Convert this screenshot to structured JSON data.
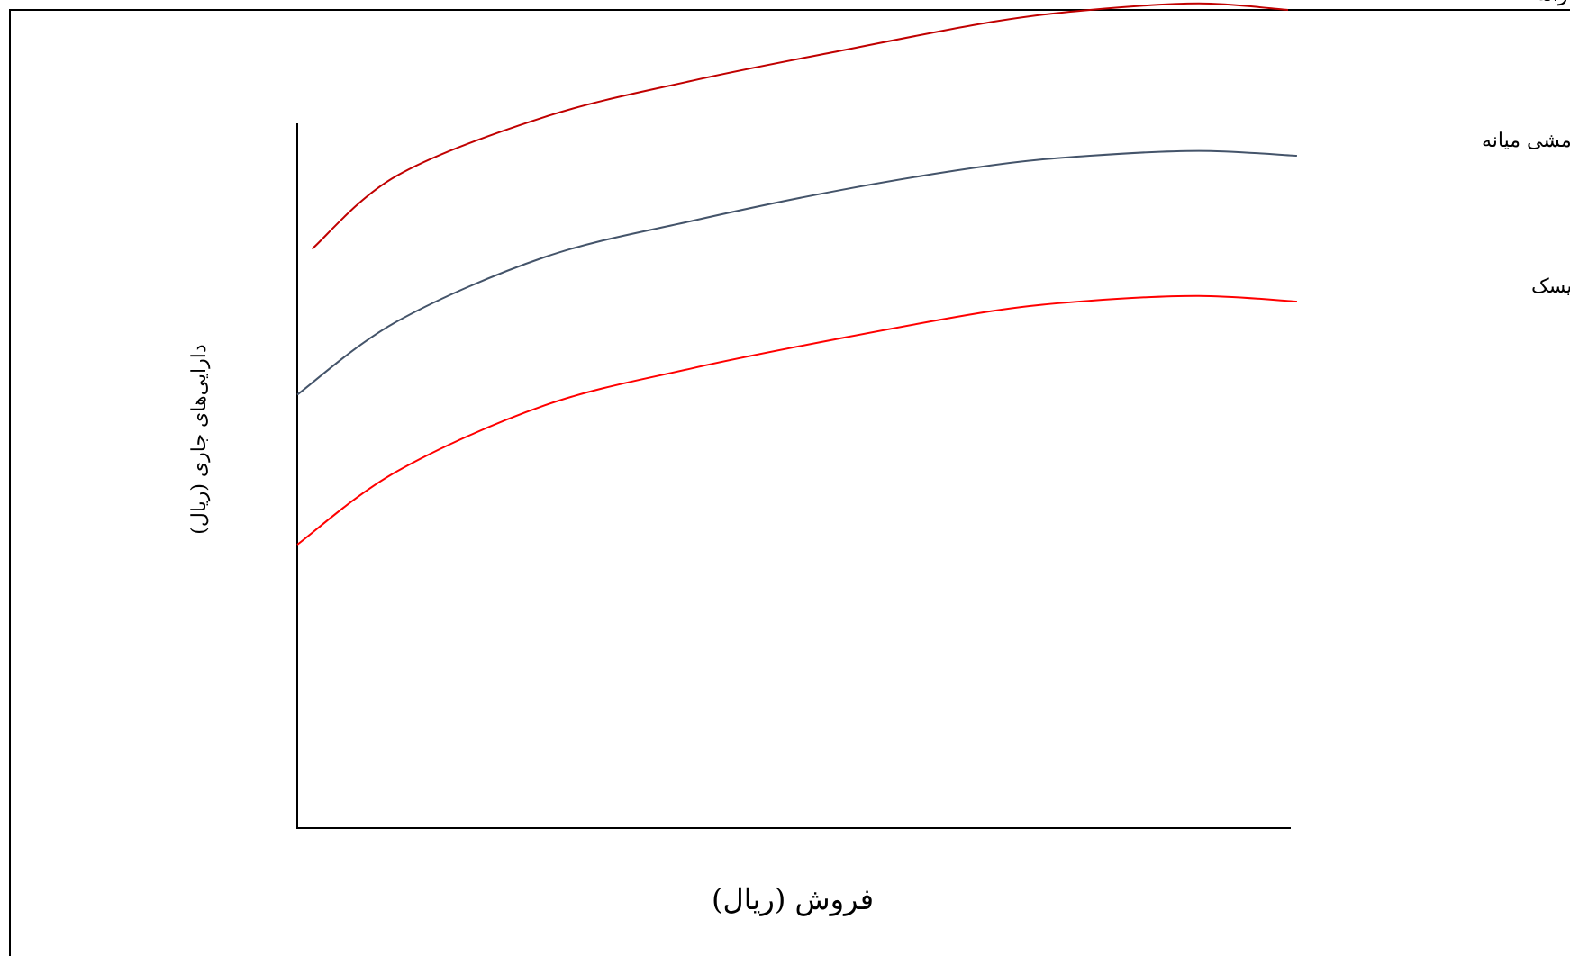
{
  "chart_data": {
    "type": "line",
    "title": "",
    "xlabel": "فروش (ریال)",
    "ylabel": "دارایی‌های جاری (ریال)",
    "xlim": [
      0,
      100
    ],
    "ylim": [
      0,
      100
    ],
    "grid": false,
    "legend": "right",
    "series": [
      {
        "name": "خط مشی محافظه‌کارانه",
        "color": "#c00000",
        "x": [
          1.5,
          10,
          25,
          40,
          55,
          70,
          80,
          91,
          100
        ],
        "y": [
          71.5,
          80.5,
          87.8,
          92.3,
          96.0,
          99.5,
          101.0,
          101.8,
          101.0
        ]
      },
      {
        "name": "خط‌مشی میانه",
        "color": "#44546a",
        "x": [
          0,
          10,
          25,
          40,
          55,
          70,
          80,
          91,
          100.9
        ],
        "y": [
          53.5,
          62.5,
          70.5,
          75.0,
          78.8,
          81.8,
          83.0,
          83.6,
          83.0
        ]
      },
      {
        "name": "خط‌مشی پرریسک",
        "color": "#ff0000",
        "x": [
          0,
          10,
          25,
          40,
          55,
          70,
          80,
          91,
          100.9
        ],
        "y": [
          35.0,
          44.0,
          52.2,
          56.8,
          60.5,
          63.8,
          65.1,
          65.7,
          65.0
        ]
      }
    ]
  }
}
